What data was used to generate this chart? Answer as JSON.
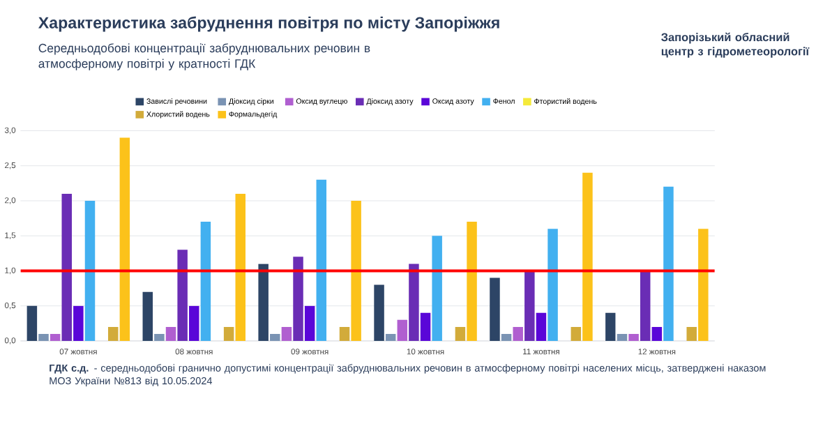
{
  "chart_data": {
    "type": "bar",
    "title": "Характеристика забруднення повітря по місту Запоріжжя",
    "subtitle": "Середньодобові концентрації забруднювальних речовин в атмосферному повітрі у кратності ГДК",
    "annotations": [
      "Запорізький обласний центр з гідрометеорології",
      "**ГДК с.д.** - середньодобові гранично допустимі концентрації забруднювальних речовин в атмосферному повітрі населених місць, затверджені наказом МОЗ України №813 від 10.05.2024"
    ],
    "categories": [
      "07 жовтня",
      "08 жовтня",
      "09 жовтня",
      "10 жовтня",
      "11 жовтня",
      "12 жовтня"
    ],
    "series": [
      {
        "name": "Завислі речовини",
        "color": "#2d4566",
        "values": [
          0.5,
          0.7,
          1.1,
          0.8,
          0.9,
          0.4
        ]
      },
      {
        "name": "Діоксид сірки",
        "color": "#7a93b3",
        "values": [
          0.1,
          0.1,
          0.1,
          0.1,
          0.1,
          0.1
        ]
      },
      {
        "name": "Оксид вуглецю",
        "color": "#b05fd0",
        "values": [
          0.1,
          0.2,
          0.2,
          0.3,
          0.2,
          0.1
        ]
      },
      {
        "name": "Діоксид азоту",
        "color": "#6a2db5",
        "values": [
          2.1,
          1.3,
          1.2,
          1.1,
          1.0,
          1.0
        ]
      },
      {
        "name": "Оксид азоту",
        "color": "#5a06d8",
        "values": [
          0.5,
          0.5,
          0.5,
          0.4,
          0.4,
          0.2
        ]
      },
      {
        "name": "Фенол",
        "color": "#42b0f0",
        "values": [
          2.0,
          1.7,
          2.3,
          1.5,
          1.6,
          2.2
        ]
      },
      {
        "name": "Фтористий водень",
        "color": "#f5ea3a",
        "values": [
          null,
          null,
          null,
          null,
          null,
          null
        ]
      },
      {
        "name": "Хлористий водень",
        "color": "#d2ab3a",
        "values": [
          0.2,
          0.2,
          0.2,
          0.2,
          0.2,
          0.2
        ]
      },
      {
        "name": "Формальдегід",
        "color": "#fcc21a",
        "values": [
          2.9,
          2.1,
          2.0,
          1.7,
          2.4,
          1.6
        ]
      }
    ],
    "ylim": [
      0,
      3
    ],
    "yticks": [
      {
        "value": 0,
        "label": "0,0"
      },
      {
        "value": 0.5,
        "label": "0,5"
      },
      {
        "value": 1,
        "label": "1,0"
      },
      {
        "value": 1.5,
        "label": "1,5"
      },
      {
        "value": 2,
        "label": "2,0"
      },
      {
        "value": 2.5,
        "label": "2,5"
      },
      {
        "value": 3,
        "label": "3,0"
      }
    ],
    "grid": "y",
    "legend": "top",
    "ref_lines": [
      {
        "axis": "y",
        "value": 1,
        "color": "#ff0000"
      }
    ]
  }
}
